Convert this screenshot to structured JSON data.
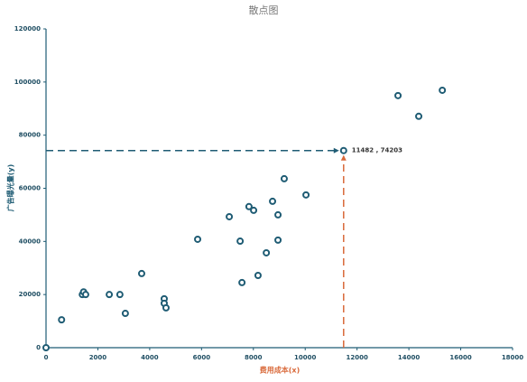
{
  "chart_data": {
    "type": "scatter",
    "title": "散点图",
    "x_label": "费用成本(x)",
    "y_label": "广告曝光量(y)",
    "xlim": [
      0,
      18000
    ],
    "xticks": [
      0,
      2000,
      4000,
      6000,
      8000,
      10000,
      12000,
      14000,
      16000,
      18000
    ],
    "ylim": [
      0,
      120000
    ],
    "yticks": [
      0,
      20000,
      40000,
      60000,
      80000,
      100000,
      120000
    ],
    "color": "#1f5c74",
    "axis_color": "#1f5c74",
    "series": [
      {
        "x": [
          0,
          600,
          1400,
          1450,
          1530,
          2440,
          2850,
          3060,
          3690,
          4560,
          4560,
          4630,
          5850,
          7070,
          7490,
          7560,
          7830,
          8010,
          8180,
          8500,
          8740,
          8950,
          8950,
          9190,
          10030,
          11482,
          13580,
          14380,
          15290
        ],
        "y": [
          0,
          10500,
          20000,
          21000,
          20000,
          20000,
          20000,
          12900,
          27900,
          18400,
          16700,
          15000,
          40800,
          49300,
          40100,
          24500,
          53100,
          51700,
          27200,
          35700,
          55100,
          50000,
          40500,
          63600,
          57500,
          74203,
          94900,
          87100,
          96900
        ]
      }
    ],
    "highlight": {
      "x": 11482,
      "y": 74203,
      "label": "11482 , 74203",
      "x_color": "#d9693a",
      "y_color": "#1f5c74"
    }
  }
}
